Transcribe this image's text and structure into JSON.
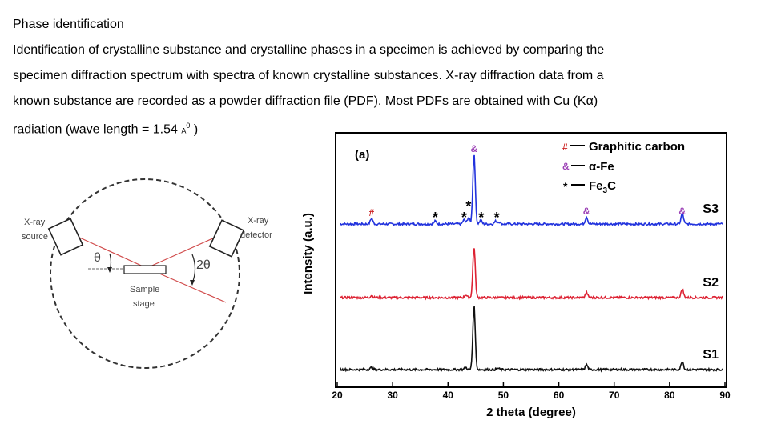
{
  "slide": {
    "title": "Phase identification",
    "line1": "Identification of crystalline substance and crystalline phases in a specimen is achieved by comparing the",
    "line2": "specimen diffraction spectrum with spectra of known crystalline substances. X-ray diffraction data from a",
    "line3": "known substance are recorded as a powder diffraction file (PDF). Most PDFs are obtained with Cu (Kα)",
    "line4_main": "radiation (wave length = 1.54",
    "line4_unit": "A",
    "line4_sup": "0",
    "line4_end": ")"
  },
  "diagram": {
    "source_label": [
      "X-ray",
      "source"
    ],
    "detector_label": [
      "X-ray",
      "detector"
    ],
    "theta": "θ",
    "two_theta": "2θ",
    "stage_label": [
      "Sample",
      "stage"
    ]
  },
  "chart_data": {
    "type": "line",
    "panel_label": "(a)",
    "xlabel": "2 theta (degree)",
    "ylabel": "Intensity (a.u.)",
    "xlim": [
      20,
      90
    ],
    "xticks": [
      20,
      30,
      40,
      50,
      60,
      70,
      80,
      90
    ],
    "legend": [
      {
        "marker": "#",
        "text": "Graphitic carbon",
        "color": "#cc2222"
      },
      {
        "marker": "&",
        "text": "α-Fe",
        "color": "#9b3fb5"
      },
      {
        "marker": "*",
        "text": "Fe",
        "sub": "3",
        "tail": "C",
        "color": "#000000"
      }
    ],
    "series": [
      {
        "name": "S3",
        "color": "#2233dd",
        "offset": 2.0,
        "peaks": [
          [
            26.2,
            0.08
          ],
          [
            37.7,
            0.04
          ],
          [
            42.9,
            0.06
          ],
          [
            43.7,
            0.09
          ],
          [
            44.7,
            1.0
          ],
          [
            45.9,
            0.05
          ],
          [
            48.6,
            0.04
          ],
          [
            49.2,
            0.03
          ],
          [
            65.0,
            0.1
          ],
          [
            82.3,
            0.15
          ]
        ]
      },
      {
        "name": "S2",
        "color": "#dd2233",
        "offset": 1.0,
        "peaks": [
          [
            26.2,
            0.03
          ],
          [
            43.2,
            0.04
          ],
          [
            44.7,
            0.72
          ],
          [
            65.0,
            0.07
          ],
          [
            82.3,
            0.12
          ]
        ]
      },
      {
        "name": "S1",
        "color": "#111111",
        "offset": 0.0,
        "peaks": [
          [
            26.2,
            0.03
          ],
          [
            43.2,
            0.03
          ],
          [
            44.7,
            0.9
          ],
          [
            49.0,
            0.02
          ],
          [
            65.0,
            0.07
          ],
          [
            82.3,
            0.12
          ]
        ]
      }
    ],
    "annotations": [
      {
        "text": "&",
        "x": 44.7,
        "series": "S3",
        "level": "top",
        "color": "#9b3fb5"
      },
      {
        "text": "#",
        "x": 26.2,
        "series": "S3",
        "color": "#cc2222"
      },
      {
        "text": "*",
        "x": 37.7,
        "series": "S3",
        "color": "#000000"
      },
      {
        "text": "*",
        "x": 42.9,
        "series": "S3",
        "color": "#000000"
      },
      {
        "text": "*",
        "x": 43.7,
        "series": "S3",
        "level": "high",
        "color": "#000000"
      },
      {
        "text": "*",
        "x": 46.0,
        "series": "S3",
        "color": "#000000"
      },
      {
        "text": "*",
        "x": 48.8,
        "series": "S3",
        "color": "#000000"
      },
      {
        "text": "&",
        "x": 65.0,
        "series": "S3",
        "color": "#9b3fb5"
      },
      {
        "text": "&",
        "x": 82.3,
        "series": "S3",
        "color": "#9b3fb5"
      }
    ]
  }
}
